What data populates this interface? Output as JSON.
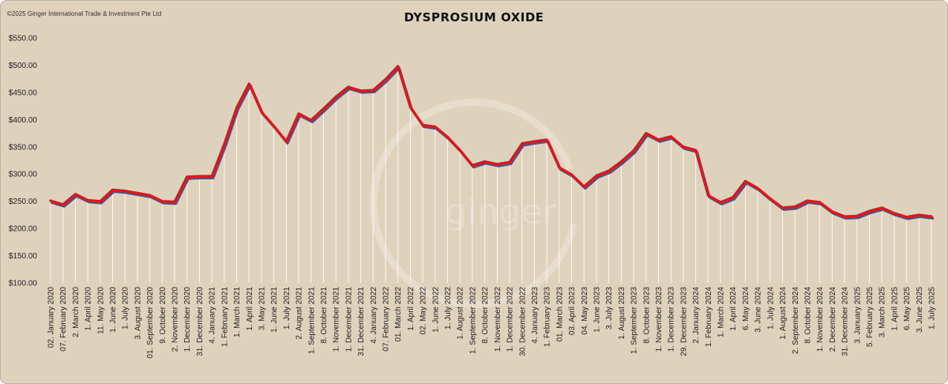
{
  "copyright": "©2025 Ginger International Trade & Investment Pte Ltd",
  "watermark": "ginger",
  "colors": {
    "background": "#dfd2bd",
    "line": "#e0161b",
    "shadow": "#5a4f78",
    "drop": "#ffffff"
  },
  "chart_data": {
    "type": "line",
    "title": "DYSPROSIUM OXIDE",
    "xlabel": "",
    "ylabel": "",
    "ylim": [
      100,
      550
    ],
    "ytick_values": [
      100,
      150,
      200,
      250,
      300,
      350,
      400,
      450,
      500,
      550
    ],
    "ytick_labels": [
      "$100.00",
      "$150.00",
      "$200.00",
      "$250.00",
      "$300.00",
      "$350.00",
      "$400.00",
      "$450.00",
      "$500.00",
      "$550.00"
    ],
    "grid": false,
    "legend": "none",
    "categories": [
      "02. January 2020",
      "07. February 2020",
      "2. March 2020",
      "1. April 2020",
      "11. May 2020",
      "1. June 2020",
      "1. July 2020",
      "3. August 2020",
      "01. September 2020",
      "9. October 2020",
      "2. November 2020",
      "1. December 2020",
      "31. December 2020",
      "4. January 2021",
      "1. February 2021",
      "1. March 2021",
      "1. April 2021",
      "3. May 2021",
      "1. June 2021",
      "1. July 2021",
      "2. August 2021",
      "1. September 2021",
      "8. October 2021",
      "1. November 2021",
      "1. December 2021",
      "31. December 2021",
      "4. January 2022",
      "07. February 2022",
      "01. March 2022",
      "1. April 2022",
      "02. May 2022",
      "1. June 2022",
      "1. July 2022",
      "1. August 2022",
      "1. September 2022",
      "8. October 2022",
      "1. November 2022",
      "1. December 2022",
      "30. December 2022",
      "4. January 2023",
      "1. February 2023",
      "01. March 2023",
      "03. April 2023",
      "04. May 2023",
      "1. June 2023",
      "3. July 2023",
      "1. August 2023",
      "1. September 2023",
      "8. October 2023",
      "1. November 2023",
      "1. December 2023",
      "29. December 2023",
      "2. January 2024",
      "1. February 2024",
      "1. March 2024",
      "1. April 2024",
      "6. May 2024",
      "3. June 2024",
      "1. July 2024",
      "1. August 2024",
      "2. September 2024",
      "8. October 2024",
      "1. November 2024",
      "2. December 2024",
      "31. December 2024",
      "3. January 2025",
      "5. February 2025",
      "3. March 2025",
      "1. April 2025",
      "6. May 2025",
      "3. June 2025",
      "1. July 2025"
    ],
    "series": [
      {
        "values": [
          251,
          244,
          263,
          252,
          250,
          271,
          269,
          265,
          261,
          250,
          249,
          295,
          296,
          296,
          355,
          422,
          466,
          414,
          388,
          360,
          411,
          399,
          420,
          442,
          460,
          453,
          454,
          474,
          498,
          423,
          390,
          387,
          368,
          344,
          316,
          323,
          318,
          322,
          356,
          360,
          363,
          312,
          299,
          277,
          297,
          306,
          323,
          343,
          375,
          363,
          369,
          350,
          344,
          261,
          248,
          257,
          287,
          274,
          255,
          238,
          240,
          251,
          248,
          231,
          222,
          223,
          232,
          238,
          228,
          221,
          225,
          222
        ]
      }
    ]
  }
}
